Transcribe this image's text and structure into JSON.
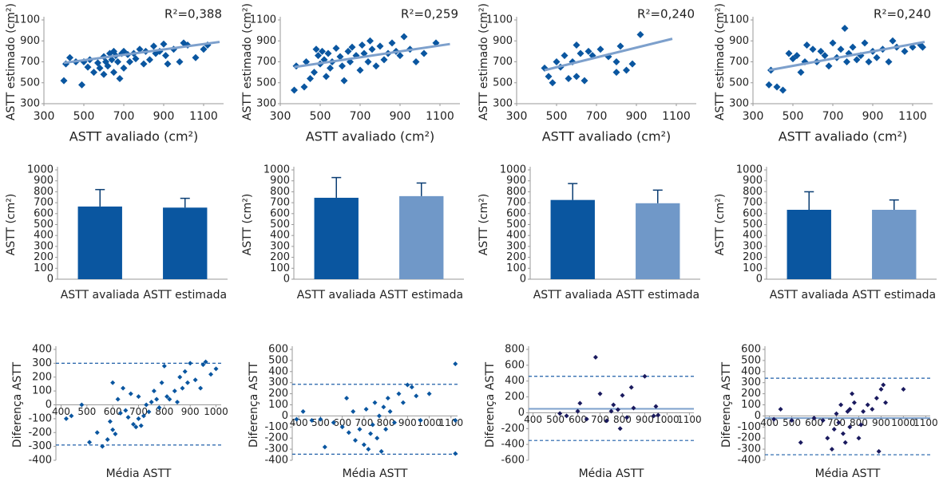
{
  "chart_data": [
    {
      "type": "scatter",
      "annotation": "R²=0,388",
      "x_label": "ASTT avaliado (cm²)",
      "y_label": "ASTT estimado (cm²)",
      "color": "#0a56a0",
      "line_color": "#7da0cc",
      "xlim": [
        300,
        1200
      ],
      "ylim": [
        300,
        1100
      ],
      "xticks": [
        300,
        500,
        700,
        900,
        1100
      ],
      "yticks": [
        300,
        500,
        700,
        900,
        1100
      ],
      "x": [
        400,
        410,
        430,
        460,
        490,
        500,
        520,
        530,
        550,
        570,
        580,
        600,
        600,
        610,
        620,
        630,
        640,
        650,
        650,
        660,
        670,
        680,
        690,
        700,
        700,
        720,
        730,
        750,
        760,
        780,
        800,
        810,
        830,
        850,
        860,
        880,
        900,
        910,
        950,
        980,
        1000,
        1020,
        1060,
        1100,
        1120,
        920
      ],
      "y": [
        520,
        680,
        740,
        700,
        480,
        700,
        650,
        720,
        600,
        690,
        640,
        580,
        750,
        700,
        660,
        780,
        720,
        800,
        600,
        760,
        700,
        540,
        780,
        800,
        640,
        770,
        700,
        780,
        730,
        820,
        680,
        800,
        720,
        850,
        780,
        800,
        870,
        760,
        820,
        700,
        880,
        860,
        740,
        820,
        860,
        680
      ],
      "trendline": {
        "x": [
          400,
          1180
        ],
        "y": [
          690,
          890
        ]
      }
    },
    {
      "type": "scatter",
      "annotation": "R²=0,259",
      "x_label": "ASTT avaliado (cm²)",
      "y_label": "ASTT estimado (cm²)",
      "color": "#0a56a0",
      "line_color": "#7da0cc",
      "xlim": [
        300,
        1200
      ],
      "ylim": [
        300,
        1100
      ],
      "xticks": [
        300,
        500,
        700,
        900,
        1100
      ],
      "yticks": [
        300,
        500,
        700,
        900,
        1100
      ],
      "x": [
        370,
        380,
        420,
        430,
        450,
        470,
        480,
        490,
        500,
        510,
        520,
        530,
        540,
        550,
        560,
        580,
        600,
        610,
        620,
        640,
        650,
        660,
        680,
        700,
        710,
        720,
        740,
        760,
        780,
        800,
        820,
        840,
        860,
        880,
        900,
        920,
        950,
        980,
        1020,
        1080,
        750
      ],
      "y": [
        430,
        660,
        460,
        700,
        540,
        600,
        820,
        760,
        680,
        800,
        720,
        560,
        780,
        640,
        700,
        830,
        750,
        660,
        520,
        800,
        700,
        840,
        760,
        620,
        860,
        780,
        700,
        820,
        660,
        850,
        720,
        780,
        880,
        800,
        760,
        940,
        820,
        700,
        780,
        880,
        900
      ],
      "trendline": {
        "x": [
          370,
          1150
        ],
        "y": [
          650,
          870
        ]
      }
    },
    {
      "type": "scatter",
      "annotation": "R²=0,240",
      "x_label": "ASTT avaliado (cm²)",
      "y_label": "ASTT estimado (cm²)",
      "color": "#0a56a0",
      "line_color": "#7da0cc",
      "xlim": [
        300,
        1200
      ],
      "ylim": [
        300,
        1100
      ],
      "xticks": [
        300,
        500,
        700,
        900,
        1100
      ],
      "yticks": [
        300,
        500,
        700,
        900,
        1100
      ],
      "x": [
        440,
        460,
        480,
        500,
        520,
        540,
        560,
        580,
        600,
        600,
        620,
        640,
        660,
        680,
        720,
        760,
        800,
        820,
        850,
        880,
        920,
        800
      ],
      "y": [
        640,
        560,
        500,
        700,
        650,
        760,
        540,
        700,
        560,
        860,
        780,
        520,
        800,
        760,
        820,
        750,
        700,
        850,
        620,
        680,
        960,
        600
      ],
      "trendline": {
        "x": [
          440,
          1080
        ],
        "y": [
          620,
          920
        ]
      }
    },
    {
      "type": "scatter",
      "annotation": "R²=0,240",
      "x_label": "ASTT avaliado (cm²)",
      "y_label": "ASTT estimado (cm²)",
      "color": "#0a56a0",
      "line_color": "#7da0cc",
      "xlim": [
        300,
        1200
      ],
      "ylim": [
        300,
        1100
      ],
      "xticks": [
        300,
        500,
        700,
        900,
        1100
      ],
      "yticks": [
        300,
        500,
        700,
        900,
        1100
      ],
      "x": [
        380,
        390,
        420,
        450,
        480,
        500,
        520,
        540,
        560,
        570,
        600,
        620,
        640,
        660,
        680,
        700,
        720,
        740,
        760,
        770,
        780,
        800,
        820,
        840,
        860,
        880,
        900,
        920,
        950,
        980,
        1000,
        1020,
        1060,
        1100,
        1140,
        1150
      ],
      "y": [
        480,
        620,
        460,
        430,
        780,
        730,
        760,
        600,
        700,
        860,
        820,
        700,
        800,
        760,
        660,
        880,
        740,
        820,
        1020,
        700,
        780,
        840,
        720,
        760,
        880,
        700,
        800,
        740,
        820,
        700,
        900,
        840,
        800,
        840,
        860,
        840
      ],
      "trendline": {
        "x": [
          380,
          1160
        ],
        "y": [
          620,
          890
        ]
      }
    },
    {
      "type": "bar",
      "y_label": "ASTT (cm²)",
      "categories": [
        "ASTT avaliada",
        "ASTT estimada"
      ],
      "values": [
        665,
        655
      ],
      "errors": [
        155,
        85
      ],
      "colors": [
        "#0a56a0",
        "#0a56a0"
      ],
      "ylim": [
        0,
        1000
      ],
      "yticks": [
        0,
        100,
        200,
        300,
        400,
        500,
        600,
        700,
        800,
        900,
        1000
      ]
    },
    {
      "type": "bar",
      "y_label": "ASTT (cm²)",
      "categories": [
        "ASTT avaliada",
        "ASTT estimada"
      ],
      "values": [
        745,
        760
      ],
      "errors": [
        185,
        120
      ],
      "colors": [
        "#0a56a0",
        "#7098c8"
      ],
      "ylim": [
        0,
        1000
      ],
      "yticks": [
        0,
        100,
        200,
        300,
        400,
        500,
        600,
        700,
        800,
        900,
        1000
      ]
    },
    {
      "type": "bar",
      "y_label": "ASTT (cm²)",
      "categories": [
        "ASTT avaliada",
        "ASTT estimada"
      ],
      "values": [
        725,
        695
      ],
      "errors": [
        150,
        120
      ],
      "colors": [
        "#0a56a0",
        "#7098c8"
      ],
      "ylim": [
        0,
        1000
      ],
      "yticks": [
        0,
        100,
        200,
        300,
        400,
        500,
        600,
        700,
        800,
        900,
        1000
      ]
    },
    {
      "type": "bar",
      "y_label": "ASTT (cm²)",
      "categories": [
        "ASTT avaliada",
        "ASTT estimada"
      ],
      "values": [
        635,
        635
      ],
      "errors": [
        165,
        90
      ],
      "colors": [
        "#0a56a0",
        "#7098c8"
      ],
      "ylim": [
        0,
        1000
      ],
      "yticks": [
        0,
        100,
        200,
        300,
        400,
        500,
        600,
        700,
        800,
        900,
        1000
      ]
    },
    {
      "type": "scatter",
      "x_label": "Média ASTT",
      "y_label": "Diferença ASTT",
      "color": "#0a56a0",
      "xlim": [
        380,
        1020
      ],
      "ylim": [
        -400,
        400
      ],
      "xticks": [
        400,
        500,
        600,
        700,
        800,
        900,
        1000
      ],
      "yticks": [
        -400,
        -300,
        -200,
        -100,
        0,
        100,
        200,
        300,
        400
      ],
      "reference_lines": [
        {
          "y": 300,
          "color": "#1f5fa8",
          "dashed": true
        },
        {
          "y": -290,
          "color": "#1f5fa8",
          "dashed": true
        }
      ],
      "x": [
        420,
        440,
        480,
        510,
        540,
        560,
        580,
        590,
        600,
        600,
        610,
        620,
        630,
        640,
        650,
        660,
        670,
        680,
        690,
        700,
        700,
        710,
        720,
        730,
        740,
        750,
        760,
        770,
        780,
        790,
        800,
        810,
        820,
        840,
        850,
        860,
        870,
        880,
        890,
        900,
        920,
        940,
        960,
        980,
        1000,
        950
      ],
      "y": [
        -100,
        -80,
        0,
        -270,
        -200,
        -300,
        -250,
        -120,
        160,
        -180,
        -210,
        40,
        -60,
        120,
        -40,
        -90,
        80,
        -140,
        -160,
        -100,
        60,
        -150,
        -80,
        0,
        -50,
        20,
        100,
        40,
        -20,
        160,
        280,
        60,
        40,
        100,
        20,
        200,
        120,
        240,
        160,
        300,
        180,
        120,
        310,
        220,
        260,
        290
      ]
    },
    {
      "type": "scatter",
      "x_label": "Média ASTT",
      "y_label": "Diferença ASTT",
      "color": "#0a56a0",
      "xlim": [
        370,
        1130
      ],
      "ylim": [
        -400,
        600
      ],
      "xticks": [
        400,
        500,
        600,
        700,
        800,
        900,
        1000,
        1100
      ],
      "yticks": [
        -400,
        -300,
        -200,
        -100,
        0,
        100,
        200,
        300,
        400,
        500,
        600
      ],
      "reference_lines": [
        {
          "y": 285,
          "color": "#1f5fa8",
          "dashed": true
        },
        {
          "y": -345,
          "color": "#1f5fa8",
          "dashed": true
        }
      ],
      "x": [
        390,
        420,
        460,
        500,
        520,
        560,
        600,
        620,
        630,
        650,
        660,
        680,
        700,
        710,
        720,
        730,
        740,
        750,
        760,
        770,
        780,
        790,
        800,
        810,
        820,
        840,
        860,
        880,
        900,
        920,
        940,
        960,
        1000,
        1120,
        1120,
        1120
      ],
      "y": [
        -30,
        40,
        -40,
        -30,
        -280,
        -60,
        -100,
        160,
        -150,
        40,
        -220,
        -120,
        -260,
        60,
        -300,
        -160,
        -80,
        120,
        -200,
        0,
        -320,
        80,
        -120,
        160,
        40,
        -60,
        200,
        120,
        280,
        260,
        180,
        -40,
        200,
        470,
        -340,
        -40
      ]
    },
    {
      "type": "scatter",
      "x_label": "Média ASTT",
      "y_label": "Diferença ASTT",
      "color": "#1a1a5e",
      "xlim": [
        380,
        1120
      ],
      "ylim": [
        -600,
        800
      ],
      "xticks": [
        400,
        500,
        600,
        700,
        800,
        900,
        1000,
        1100
      ],
      "yticks": [
        -600,
        -400,
        -200,
        0,
        200,
        400,
        600,
        800
      ],
      "reference_lines": [
        {
          "y": 460,
          "color": "#1f5fa8",
          "dashed": true
        },
        {
          "y": 50,
          "color": "#7da0cc",
          "dashed": false
        },
        {
          "y": -350,
          "color": "#1f5fa8",
          "dashed": true
        }
      ],
      "x": [
        520,
        550,
        600,
        610,
        640,
        680,
        700,
        730,
        750,
        760,
        780,
        790,
        800,
        820,
        840,
        850,
        900,
        940,
        950,
        960
      ],
      "y": [
        -10,
        -40,
        20,
        120,
        -80,
        700,
        240,
        -100,
        20,
        100,
        40,
        -200,
        220,
        -60,
        320,
        60,
        460,
        -40,
        80,
        -30
      ]
    },
    {
      "type": "scatter",
      "x_label": "Média ASTT",
      "y_label": "Diferença ASTT",
      "color": "#1a1a5e",
      "xlim": [
        380,
        1120
      ],
      "ylim": [
        -400,
        600
      ],
      "xticks": [
        400,
        500,
        600,
        700,
        800,
        900,
        1000,
        1100
      ],
      "yticks": [
        -400,
        -300,
        -200,
        -100,
        0,
        100,
        200,
        300,
        400,
        500,
        600
      ],
      "reference_lines": [
        {
          "y": 340,
          "color": "#1f5fa8",
          "dashed": true
        },
        {
          "y": -20,
          "color": "#7da0cc",
          "dashed": false
        },
        {
          "y": -350,
          "color": "#1f5fa8",
          "dashed": true
        }
      ],
      "x": [
        420,
        450,
        500,
        540,
        600,
        640,
        660,
        680,
        690,
        700,
        710,
        720,
        730,
        740,
        750,
        760,
        770,
        780,
        800,
        810,
        820,
        840,
        860,
        880,
        890,
        900,
        910,
        920,
        1000,
        760
      ],
      "y": [
        -30,
        60,
        -40,
        -240,
        -20,
        -40,
        -200,
        -300,
        -120,
        20,
        -60,
        100,
        -160,
        -240,
        40,
        60,
        200,
        120,
        -200,
        -80,
        40,
        100,
        60,
        160,
        -320,
        240,
        280,
        120,
        240,
        -100
      ]
    }
  ]
}
